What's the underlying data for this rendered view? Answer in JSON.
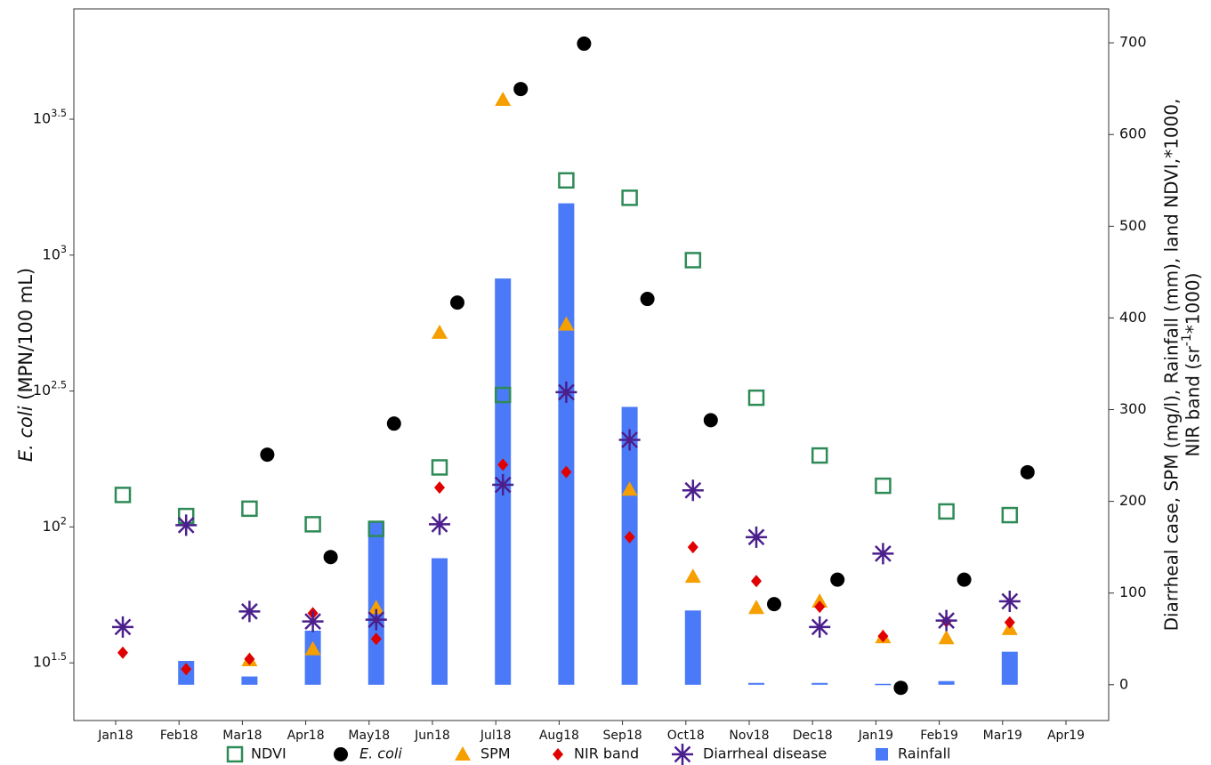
{
  "chart_data": {
    "type": "combo",
    "y_label": "E. coli (MPN/100 mL)",
    "y2_label": [
      "Diarrheal case, SPM (mg/l), Rainfall (mm), land NDVI,*1000,",
      "NIR band (sr^{-1}*1000)"
    ],
    "categories": [
      "Jan18",
      "Feb18",
      "Mar18",
      "Apr18",
      "May18",
      "Jun18",
      "Jul18",
      "Aug18",
      "Sep18",
      "Oct18",
      "Nov18",
      "Dec18",
      "Jan19",
      "Feb19",
      "Mar19",
      "Apr19"
    ],
    "log_y": true,
    "ylim": [
      19.4,
      8050
    ],
    "yticks": [
      {
        "value": 31.62,
        "label": "10^{1.5}"
      },
      {
        "value": 100,
        "label": "10^{2}"
      },
      {
        "value": 316.2,
        "label": "10^{2.5}"
      },
      {
        "value": 1000,
        "label": "10^{3}"
      },
      {
        "value": 3162,
        "label": "10^{3.5}"
      }
    ],
    "y2lim": [
      -39,
      737
    ],
    "y2ticks": [
      0,
      100,
      200,
      300,
      400,
      500,
      600,
      700
    ],
    "legend": "bottom",
    "series": [
      {
        "name": "NDVI",
        "type": "scatter",
        "marker": "square",
        "color": "#2e8b57",
        "axis": "y2",
        "values": [
          207,
          184,
          192,
          175,
          170,
          237,
          316,
          550,
          531,
          463,
          313,
          250,
          217,
          189,
          185,
          null
        ]
      },
      {
        "name": "E. coli",
        "type": "scatter",
        "marker": "circle",
        "color": "#000000",
        "values": [
          null,
          null,
          184.5,
          77.5,
          240,
          669,
          4083,
          5998,
          690,
          247,
          52,
          64,
          25.6,
          64,
          159,
          null
        ]
      },
      {
        "name": "SPM",
        "type": "scatter",
        "marker": "triangle",
        "color": "#f5a000",
        "axis": "y2",
        "values": [
          null,
          null,
          27,
          39,
          84,
          384,
          638,
          393,
          213,
          118,
          84,
          91,
          52,
          51,
          61,
          null
        ]
      },
      {
        "name": "NIR band",
        "type": "scatter",
        "marker": "diamond",
        "color": "#e00000",
        "axis": "y2",
        "values": [
          35,
          17,
          28,
          78,
          50,
          215,
          240,
          232,
          161,
          150,
          113,
          85,
          53,
          69,
          68,
          null
        ]
      },
      {
        "name": "Diarrheal disease",
        "type": "scatter",
        "marker": "asterisk",
        "color": "#4b1f8c",
        "axis": "y2",
        "values": [
          63,
          174,
          80,
          69,
          71,
          175,
          218,
          319,
          267,
          212,
          161,
          63,
          143,
          70,
          91,
          null
        ]
      },
      {
        "name": "Rainfall",
        "type": "bar",
        "marker": "bar",
        "color": "#4a7af7",
        "axis": "y2",
        "values": [
          null,
          26,
          9,
          59,
          177,
          138,
          443,
          525,
          303,
          81,
          2,
          2,
          1,
          4,
          36,
          null
        ]
      }
    ]
  }
}
